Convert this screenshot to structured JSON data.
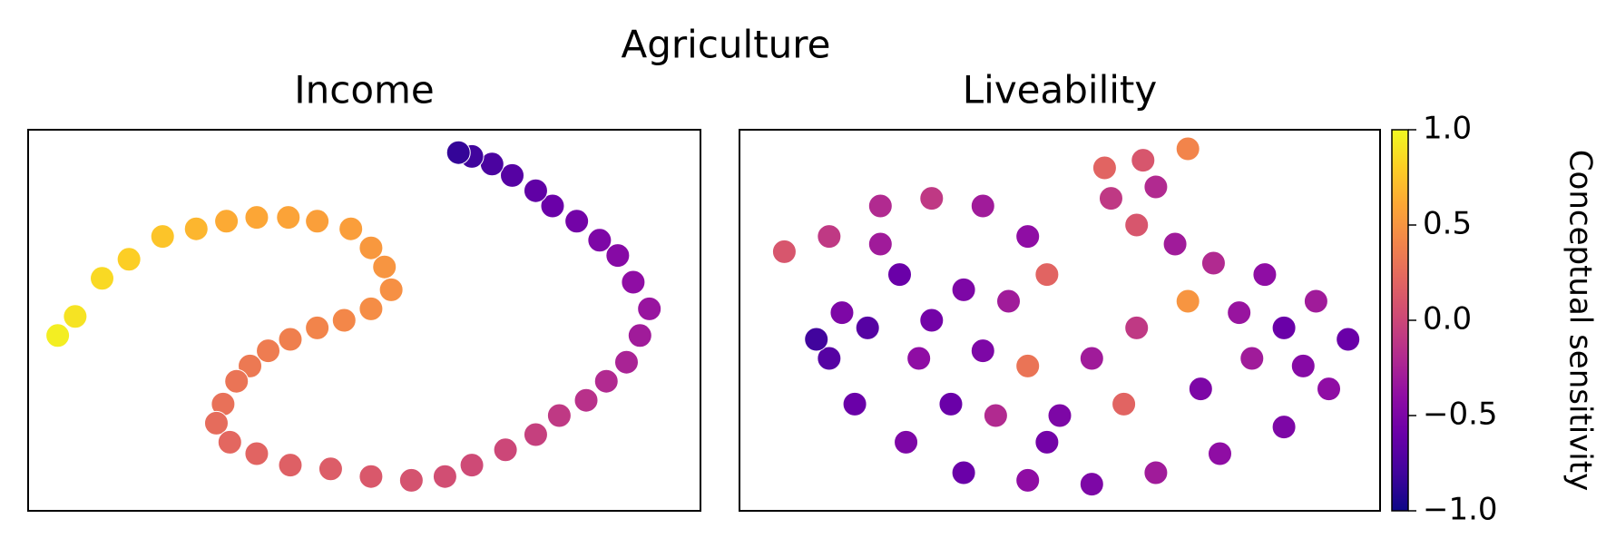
{
  "title": "Agriculture",
  "chart_data": [
    {
      "type": "scatter",
      "title": "Income",
      "xlim": [
        0,
        100
      ],
      "ylim": [
        0,
        100
      ],
      "x": [
        4.4,
        7,
        11,
        15,
        20,
        25,
        29.5,
        34,
        38.7,
        43,
        48,
        51,
        53,
        54,
        51,
        47,
        43,
        39,
        35.7,
        33,
        31,
        29,
        28,
        30,
        34,
        39,
        45,
        51,
        57,
        62,
        66,
        71,
        75.5,
        79,
        83,
        86,
        89,
        91,
        92.4,
        90,
        87.7,
        85,
        81.6,
        78,
        75.5,
        72,
        69,
        66,
        64
      ],
      "y": [
        46,
        51,
        61,
        66,
        72,
        74,
        76,
        77,
        77,
        76,
        74,
        69,
        64,
        58,
        53,
        50,
        48,
        45,
        42,
        38,
        34,
        28,
        23,
        18,
        15,
        12,
        11,
        9,
        8,
        9,
        12,
        16,
        20,
        25,
        29,
        34,
        39,
        46,
        53,
        60,
        67,
        71,
        76,
        80,
        84,
        88,
        91,
        93,
        94
      ],
      "c": [
        0.95,
        0.9,
        0.85,
        0.8,
        0.75,
        0.68,
        0.62,
        0.6,
        0.58,
        0.56,
        0.55,
        0.52,
        0.5,
        0.47,
        0.45,
        0.42,
        0.4,
        0.37,
        0.35,
        0.33,
        0.3,
        0.28,
        0.25,
        0.22,
        0.2,
        0.17,
        0.15,
        0.12,
        0.08,
        0.05,
        0.02,
        0,
        -0.05,
        -0.1,
        -0.15,
        -0.2,
        -0.25,
        -0.3,
        -0.35,
        -0.4,
        -0.45,
        -0.5,
        -0.55,
        -0.6,
        -0.65,
        -0.7,
        -0.75,
        -0.8,
        -0.85
      ]
    },
    {
      "type": "scatter",
      "title": "Liveability",
      "xlim": [
        0,
        100
      ],
      "ylim": [
        0,
        100
      ],
      "x": [
        7,
        14,
        22,
        30,
        38,
        45,
        48,
        42,
        35,
        25,
        16,
        14,
        18,
        26,
        35,
        45,
        55,
        65,
        75,
        85,
        92,
        95,
        90,
        82,
        74,
        68,
        62,
        58,
        57,
        63,
        70,
        65,
        70,
        62,
        55,
        45,
        38,
        28,
        33,
        50,
        60,
        72,
        80,
        85,
        22,
        40,
        20,
        30,
        12,
        88,
        78,
        48
      ],
      "y": [
        68,
        72,
        80,
        82,
        80,
        72,
        62,
        55,
        58,
        62,
        52,
        40,
        28,
        18,
        10,
        8,
        7,
        10,
        15,
        22,
        32,
        45,
        55,
        62,
        65,
        70,
        75,
        82,
        90,
        92,
        95,
        85,
        55,
        48,
        40,
        38,
        42,
        40,
        28,
        25,
        28,
        32,
        40,
        48,
        70,
        25,
        48,
        50,
        45,
        38,
        52,
        18
      ],
      "c": [
        0.1,
        -0.1,
        -0.2,
        -0.1,
        -0.3,
        -0.4,
        0.2,
        -0.3,
        -0.5,
        -0.6,
        -0.5,
        -0.7,
        -0.6,
        -0.5,
        -0.6,
        -0.4,
        -0.5,
        -0.3,
        -0.4,
        -0.5,
        -0.4,
        -0.6,
        -0.3,
        -0.4,
        -0.2,
        -0.3,
        0.1,
        -0.1,
        0.2,
        0.1,
        0.4,
        -0.2,
        0.5,
        -0.1,
        -0.3,
        0.3,
        -0.5,
        -0.4,
        -0.6,
        -0.5,
        0.2,
        -0.5,
        -0.3,
        -0.6,
        -0.3,
        -0.2,
        -0.7,
        -0.55,
        -0.8,
        -0.45,
        -0.35,
        -0.55
      ]
    }
  ],
  "colorbar": {
    "label": "Conceptual sensitivity",
    "colormap": "plasma",
    "lim": [
      -1,
      1
    ],
    "ticks": [
      {
        "value": 1,
        "label": "1.0"
      },
      {
        "value": 0.5,
        "label": "0.5"
      },
      {
        "value": 0,
        "label": "0.0"
      },
      {
        "value": -0.5,
        "label": "−0.5"
      },
      {
        "value": -1,
        "label": "−1.0"
      }
    ]
  }
}
